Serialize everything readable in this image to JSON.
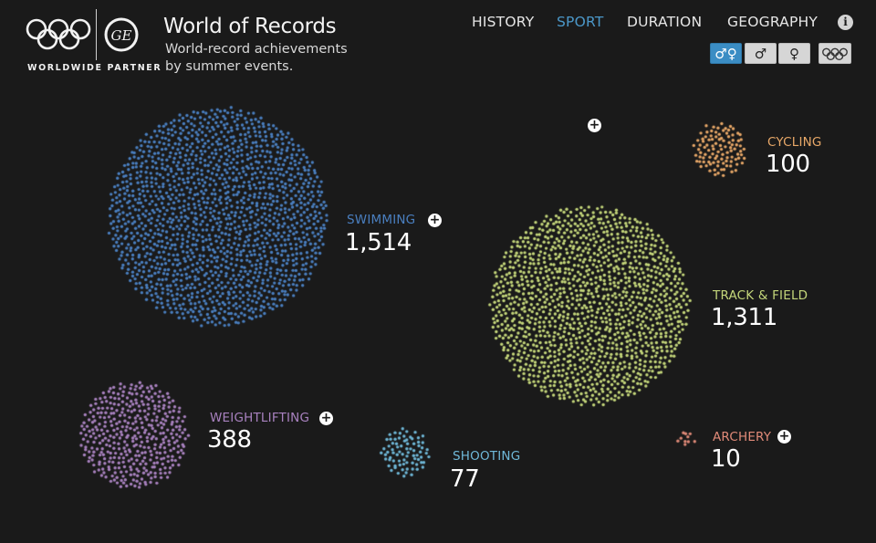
{
  "header": {
    "partner_label": "WORLDWIDE PARTNER",
    "title": "World of Records",
    "subtitle_line1": "World-record achievements",
    "subtitle_line2": "by summer events."
  },
  "nav": {
    "items": [
      {
        "label": "HISTORY",
        "active": false
      },
      {
        "label": "SPORT",
        "active": true
      },
      {
        "label": "DURATION",
        "active": false
      },
      {
        "label": "GEOGRAPHY",
        "active": false
      }
    ],
    "info_icon": "info-icon"
  },
  "filters": {
    "both_genders": {
      "icon": "male-female-icon",
      "glyph": "♂♀",
      "active": true
    },
    "male": {
      "icon": "male-icon",
      "glyph": "♂",
      "active": false
    },
    "female": {
      "icon": "female-icon",
      "glyph": "♀",
      "active": false
    },
    "olympic": {
      "icon": "olympic-rings-icon",
      "active": false
    }
  },
  "colors": {
    "background": "#1a1a1a",
    "active_blue": "#4b97c8",
    "swimming": "#4a7fc0",
    "track_field": "#c4d67a",
    "cycling": "#e8a868",
    "weightlifting": "#a982c0",
    "shooting": "#6fb8d8",
    "archery": "#e08a78"
  },
  "sports": [
    {
      "key": "swimming",
      "label": "SWIMMING",
      "count": "1,514",
      "has_plus": true
    },
    {
      "key": "track_field",
      "label": "TRACK & FIELD",
      "count": "1,311",
      "has_plus": false
    },
    {
      "key": "weightlifting",
      "label": "WEIGHTLIFTING",
      "count": "388",
      "has_plus": true
    },
    {
      "key": "cycling",
      "label": "CYCLING",
      "count": "100",
      "has_plus": false
    },
    {
      "key": "shooting",
      "label": "SHOOTING",
      "count": "77",
      "has_plus": false
    },
    {
      "key": "archery",
      "label": "ARCHERY",
      "count": "10",
      "has_plus": true
    }
  ],
  "expand_icon_glyph": "+"
}
